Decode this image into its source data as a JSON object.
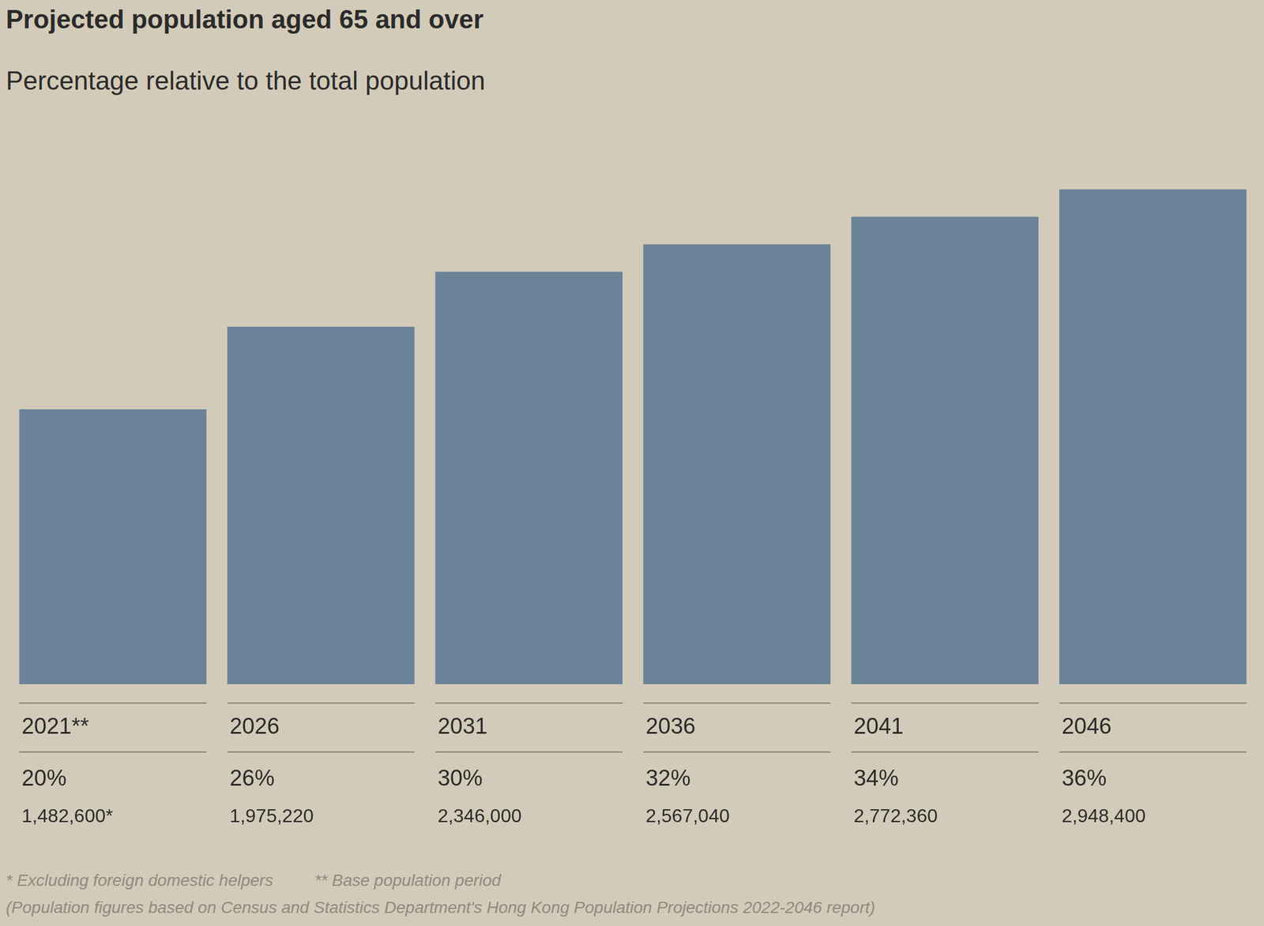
{
  "chart_data": {
    "type": "bar",
    "title": "Projected population aged 65 and over",
    "subtitle": "Percentage relative to the total population",
    "categories": [
      "2021**",
      "2026",
      "2031",
      "2036",
      "2041",
      "2046"
    ],
    "values": [
      20,
      26,
      30,
      32,
      34,
      36
    ],
    "value_labels": [
      "20%",
      "26%",
      "30%",
      "32%",
      "34%",
      "36%"
    ],
    "population_labels": [
      "1,482,600*",
      "1,975,220",
      "2,346,000",
      "2,567,040",
      "2,772,360",
      "2,948,400"
    ],
    "color": "#6b8299",
    "ylim": [
      0,
      36
    ],
    "grid": false,
    "tick_labels": false,
    "data_labels": true,
    "notes": [
      "* Excluding foreign domestic helpers",
      "** Base population period",
      "(Population figures based on Census and Statistics Department's Hong Kong Population Projections 2022-2046 report)"
    ]
  }
}
